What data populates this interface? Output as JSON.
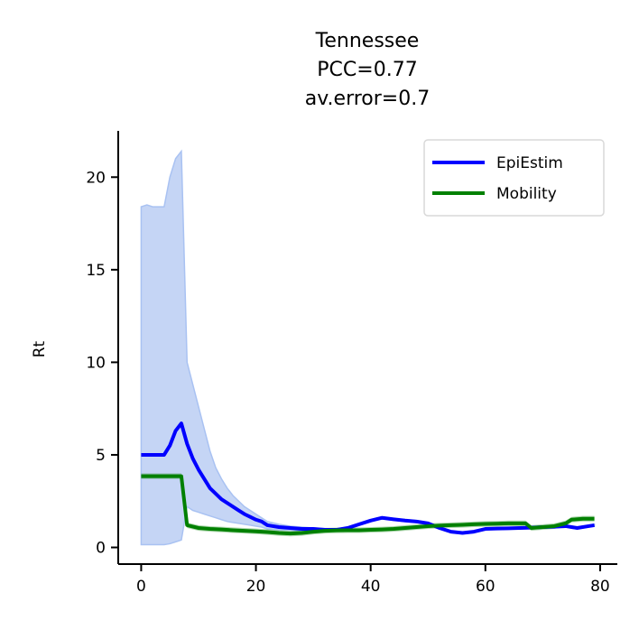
{
  "chart_data": {
    "type": "line",
    "title_lines": [
      "Tennessee",
      "PCC=0.77",
      "av.error=0.7"
    ],
    "xlabel": "",
    "ylabel": "Rt",
    "xlim": [
      -4,
      83
    ],
    "ylim": [
      -0.9,
      22.5
    ],
    "x_ticks": [
      0,
      20,
      40,
      60,
      80
    ],
    "y_ticks": [
      0,
      5,
      10,
      15,
      20
    ],
    "legend_position": "top-right",
    "colors": {
      "epiestim": "#0000ff",
      "mobility": "#008000",
      "ci_fill": "#c5d5f5",
      "ci_edge": "#a9c2f2"
    },
    "series": [
      {
        "name": "EpiEstim",
        "x": [
          0,
          1,
          2,
          3,
          4,
          5,
          6,
          7,
          8,
          9,
          10,
          11,
          12,
          13,
          14,
          15,
          16,
          17,
          18,
          19,
          20,
          21,
          22,
          24,
          26,
          28,
          30,
          32,
          34,
          36,
          38,
          40,
          42,
          44,
          46,
          48,
          50,
          52,
          54,
          56,
          58,
          60,
          62,
          64,
          66,
          68,
          70,
          72,
          74,
          76,
          78,
          79
        ],
        "values": [
          5.0,
          5.0,
          5.0,
          5.0,
          5.0,
          5.5,
          6.3,
          6.7,
          5.6,
          4.8,
          4.2,
          3.7,
          3.2,
          2.9,
          2.6,
          2.4,
          2.2,
          2.0,
          1.8,
          1.65,
          1.5,
          1.4,
          1.2,
          1.1,
          1.05,
          1.0,
          1.0,
          0.95,
          0.95,
          1.05,
          1.25,
          1.45,
          1.6,
          1.52,
          1.45,
          1.4,
          1.3,
          1.05,
          0.85,
          0.78,
          0.85,
          1.0,
          1.02,
          1.03,
          1.05,
          1.07,
          1.1,
          1.12,
          1.15,
          1.05,
          1.15,
          1.2
        ],
        "ci_upper": [
          18.4,
          18.5,
          18.4,
          18.4,
          18.4,
          20.0,
          21.0,
          21.4,
          10.0,
          8.8,
          7.6,
          6.4,
          5.2,
          4.3,
          3.7,
          3.2,
          2.8,
          2.5,
          2.2,
          2.0,
          1.8,
          1.6,
          1.4,
          1.25,
          1.15,
          1.1,
          1.05,
          1.02,
          1.0,
          1.1,
          1.3,
          1.5,
          1.65,
          1.57,
          1.5,
          1.45,
          1.35,
          1.1,
          0.9,
          0.83,
          0.9,
          1.05,
          1.07,
          1.08,
          1.1,
          1.12,
          1.15,
          1.17,
          1.2,
          1.1,
          1.2,
          1.25
        ],
        "ci_lower": [
          0.15,
          0.15,
          0.15,
          0.15,
          0.15,
          0.2,
          0.3,
          0.4,
          2.2,
          2.0,
          1.9,
          1.8,
          1.7,
          1.6,
          1.5,
          1.4,
          1.35,
          1.3,
          1.25,
          1.2,
          1.15,
          1.1,
          1.0,
          0.95,
          0.93,
          0.9,
          0.92,
          0.88,
          0.9,
          1.0,
          1.2,
          1.4,
          1.55,
          1.47,
          1.4,
          1.35,
          1.25,
          1.0,
          0.8,
          0.73,
          0.8,
          0.95,
          0.97,
          0.98,
          1.0,
          1.02,
          1.05,
          1.07,
          1.1,
          1.0,
          1.1,
          1.15
        ]
      },
      {
        "name": "Mobility",
        "x": [
          0,
          1,
          2,
          3,
          4,
          5,
          6,
          7,
          8,
          10,
          12,
          14,
          16,
          18,
          20,
          22,
          24,
          26,
          28,
          30,
          32,
          34,
          36,
          38,
          40,
          42,
          44,
          46,
          48,
          50,
          52,
          54,
          56,
          58,
          60,
          62,
          64,
          66,
          67,
          68,
          70,
          72,
          74,
          75,
          77,
          79
        ],
        "values": [
          3.85,
          3.85,
          3.85,
          3.85,
          3.85,
          3.85,
          3.85,
          3.85,
          1.2,
          1.05,
          1.0,
          0.97,
          0.93,
          0.9,
          0.87,
          0.83,
          0.78,
          0.75,
          0.78,
          0.85,
          0.9,
          0.92,
          0.93,
          0.93,
          0.95,
          0.97,
          1.0,
          1.05,
          1.1,
          1.15,
          1.18,
          1.2,
          1.22,
          1.25,
          1.27,
          1.28,
          1.3,
          1.3,
          1.3,
          1.05,
          1.1,
          1.15,
          1.3,
          1.5,
          1.55,
          1.55
        ],
        "band_width": 0.15
      }
    ],
    "legend": {
      "items": [
        "EpiEstim",
        "Mobility"
      ]
    }
  }
}
